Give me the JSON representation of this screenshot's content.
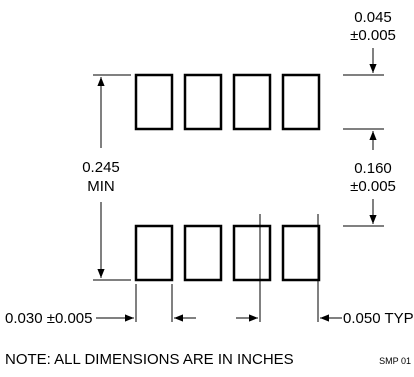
{
  "dimensions": {
    "pad_length": {
      "value": "0.045",
      "tolerance": "±0.005"
    },
    "row_spacing": {
      "value": "0.245",
      "qualifier": "MIN"
    },
    "inner_gap": {
      "value": "0.160",
      "tolerance": "±0.005"
    },
    "pad_width": {
      "value": "0.030",
      "tolerance": "±0.005"
    },
    "pitch": {
      "value": "0.050",
      "qualifier": "TYP"
    }
  },
  "note": "NOTE: ALL DIMENSIONS ARE IN INCHES",
  "drawing_code": "SMP 01",
  "pad_count_per_row": 4
}
